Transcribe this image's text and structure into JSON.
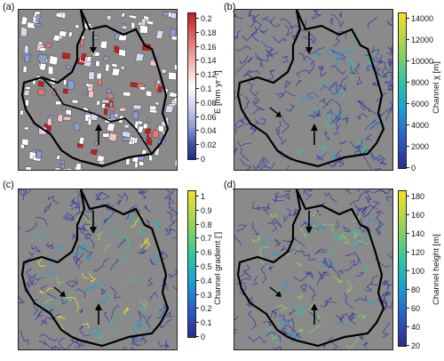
{
  "panels": [
    {
      "id": "a",
      "label": "(a)",
      "colorbar": {
        "title": "E [mm yr⁻¹]",
        "ticks": [
          "0.2",
          "0.18",
          "0.16",
          "0.14",
          "0.12",
          "0.1",
          "0.08",
          "0.06",
          "0.04",
          "0.02",
          "0"
        ],
        "colors": [
          "#1f2b86",
          "#3b4fa8",
          "#8e9cd4",
          "#d6d9f0",
          "#ffffff",
          "#f4c6c6",
          "#e27a7a",
          "#c81b1b"
        ]
      }
    },
    {
      "id": "b",
      "label": "(b)",
      "colorbar": {
        "title": "Channel χ [m]",
        "ticks": [
          "14000",
          "12000",
          "10000",
          "8000",
          "6000",
          "4000",
          "2000",
          "0"
        ],
        "colors": [
          "#2c2c8a",
          "#2b60c8",
          "#1d9fd2",
          "#2cc6a6",
          "#8cd15c",
          "#f4e125"
        ]
      }
    },
    {
      "id": "c",
      "label": "(c)",
      "colorbar": {
        "title": "Channel gradient [']",
        "ticks": [
          "1",
          "0.9",
          "0.8",
          "0.7",
          "0.6",
          "0.5",
          "0.4",
          "0.3",
          "0.2",
          "0.1",
          "0"
        ],
        "colors": [
          "#2c2c8a",
          "#2b60c8",
          "#1d9fd2",
          "#2cc6a6",
          "#8cd15c",
          "#f4e125"
        ]
      }
    },
    {
      "id": "d",
      "label": "(d)",
      "colorbar": {
        "title": "Channel height [m]",
        "ticks": [
          "180",
          "160",
          "140",
          "120",
          "100",
          "80",
          "60",
          "40",
          "20"
        ],
        "colors": [
          "#2c2c8a",
          "#2b60c8",
          "#1d9fd2",
          "#2cc6a6",
          "#8cd15c",
          "#f4e125"
        ]
      }
    }
  ]
}
